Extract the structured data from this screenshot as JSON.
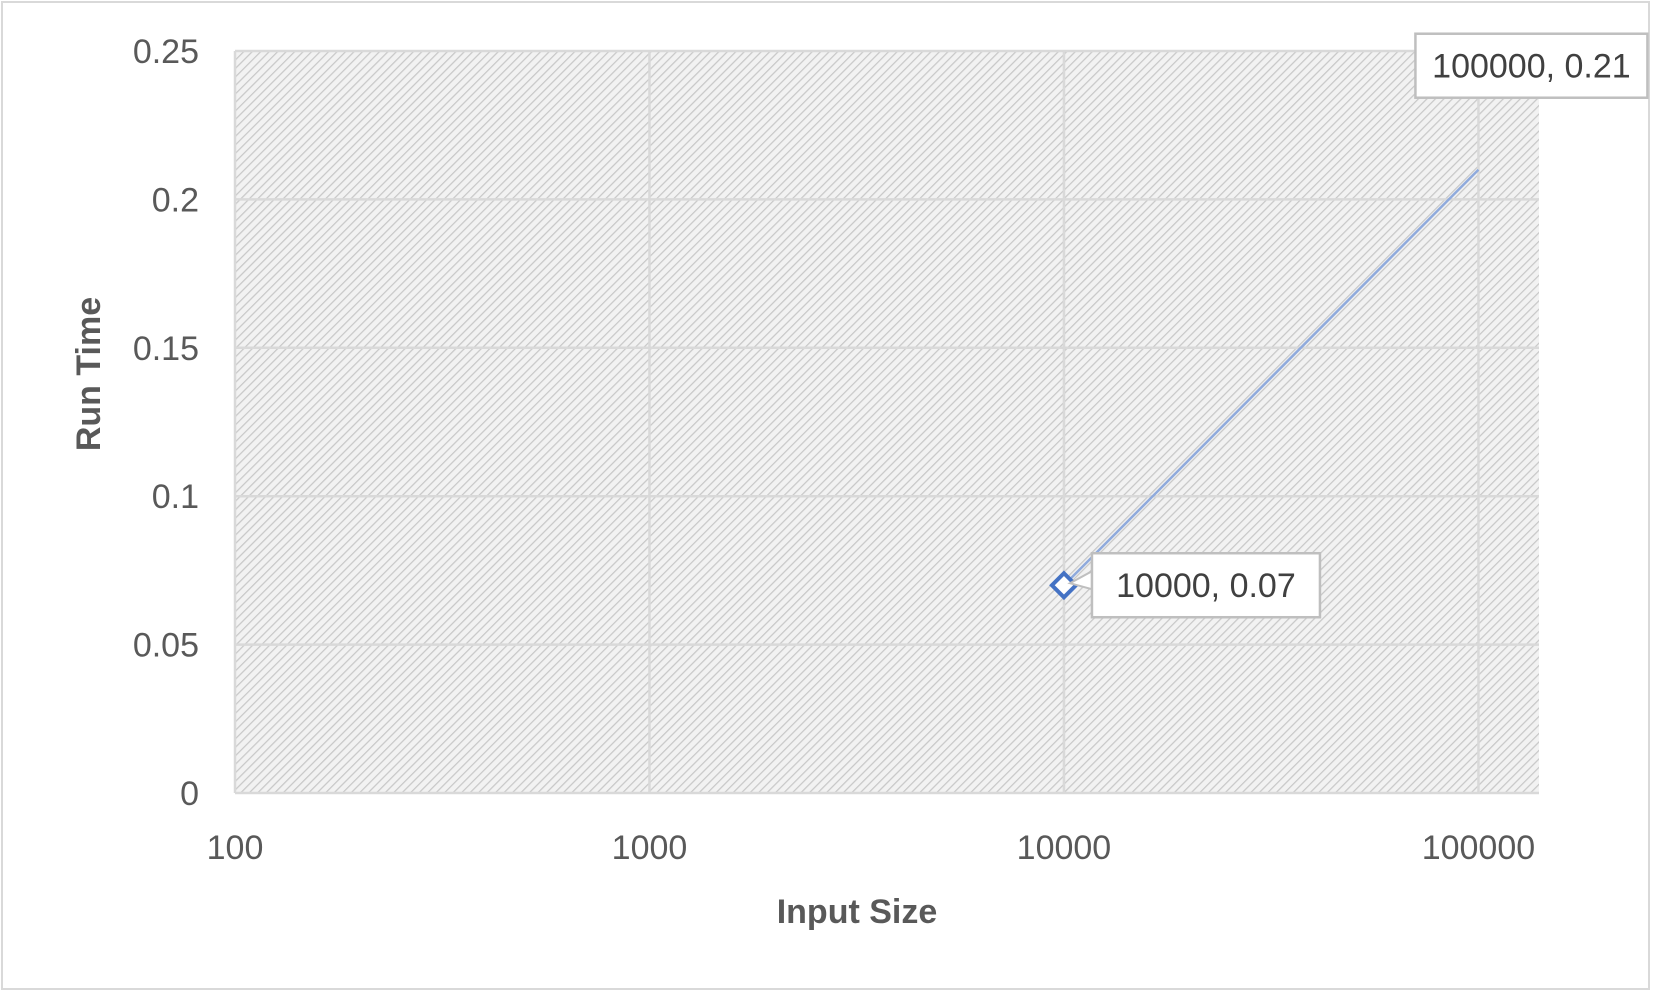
{
  "chart_data": {
    "type": "scatter",
    "title": "",
    "xlabel": "Input Size",
    "ylabel": "Run Time",
    "x_scale": "log",
    "xlim": [
      100,
      140000
    ],
    "ylim": [
      0,
      0.25
    ],
    "x_ticks": [
      "100",
      "1000",
      "10000",
      "100000"
    ],
    "y_ticks": [
      "0",
      "0.05",
      "0.1",
      "0.15",
      "0.2",
      "0.25"
    ],
    "grid": true,
    "legend": "none",
    "series": [
      {
        "points": [
          {
            "x": 10000,
            "y": 0.07,
            "label": "10000, 0.07"
          },
          {
            "x": 100000,
            "y": 0.21,
            "label": "100000, 0.21"
          }
        ]
      }
    ],
    "colors": {
      "line": "#8faadc",
      "marker": "#4472c4",
      "gridline": "#d9d9d9",
      "plot_hatch": "#d0d0d0",
      "text": "#595959"
    }
  }
}
